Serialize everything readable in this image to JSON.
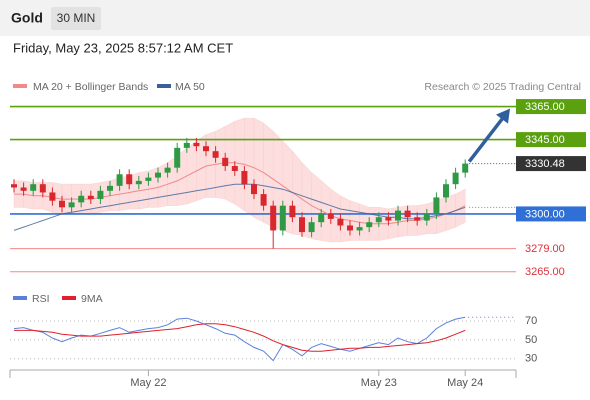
{
  "header": {
    "title": "Gold",
    "interval": "30 MIN",
    "timestamp": "Friday, May 23, 2025 8:57:12 AM CET"
  },
  "chart_data": [
    {
      "type": "candlestick",
      "credit": "Research © 2025 Trading Central",
      "categories": [
        null,
        null,
        null,
        null,
        null,
        null,
        null,
        null,
        null,
        null,
        null,
        null,
        null,
        null,
        "May 22",
        null,
        null,
        null,
        null,
        null,
        null,
        null,
        null,
        null,
        null,
        null,
        null,
        null,
        null,
        null,
        null,
        null,
        null,
        null,
        null,
        null,
        null,
        null,
        "May 23",
        null,
        null,
        null,
        null,
        null,
        null,
        null,
        null,
        "May 24"
      ],
      "open": [
        3318,
        3316,
        3314,
        3318,
        3313,
        3308,
        3304,
        3307,
        3311,
        3309,
        3314,
        3317,
        3324,
        3318,
        3320,
        3322,
        3325,
        3328,
        3340,
        3343,
        3341,
        3338,
        3334,
        3329,
        3326,
        3318,
        3312,
        3305,
        3290,
        3305,
        3298,
        3289,
        3295,
        3300,
        3297,
        3293,
        3290,
        3292,
        3295,
        3298,
        3296,
        3302,
        3298,
        3296,
        3300,
        3310,
        3318,
        3325
      ],
      "high": [
        3321,
        3319,
        3321,
        3321,
        3316,
        3311,
        3310,
        3314,
        3314,
        3317,
        3320,
        3327,
        3327,
        3323,
        3325,
        3328,
        3331,
        3343,
        3346,
        3346,
        3344,
        3341,
        3337,
        3332,
        3329,
        3321,
        3315,
        3308,
        3308,
        3308,
        3301,
        3298,
        3303,
        3303,
        3300,
        3296,
        3295,
        3298,
        3301,
        3301,
        3305,
        3305,
        3301,
        3303,
        3313,
        3321,
        3328,
        3333
      ],
      "low": [
        3313,
        3311,
        3311,
        3310,
        3305,
        3301,
        3301,
        3304,
        3306,
        3306,
        3311,
        3314,
        3315,
        3315,
        3317,
        3319,
        3322,
        3325,
        3337,
        3338,
        3335,
        3331,
        3326,
        3323,
        3315,
        3309,
        3302,
        3279,
        3287,
        3295,
        3286,
        3286,
        3292,
        3294,
        3290,
        3287,
        3287,
        3289,
        3292,
        3293,
        3293,
        3295,
        3293,
        3293,
        3297,
        3307,
        3315,
        3322
      ],
      "close": [
        3316,
        3314,
        3318,
        3313,
        3308,
        3304,
        3307,
        3311,
        3309,
        3314,
        3317,
        3324,
        3318,
        3320,
        3322,
        3325,
        3328,
        3340,
        3343,
        3341,
        3338,
        3334,
        3329,
        3326,
        3318,
        3312,
        3305,
        3290,
        3305,
        3298,
        3289,
        3295,
        3300,
        3297,
        3293,
        3290,
        3292,
        3295,
        3298,
        3296,
        3302,
        3298,
        3296,
        3300,
        3310,
        3318,
        3325,
        3330.48
      ],
      "up_color": "#2e9a45",
      "down_color": "#d9272e",
      "series": [
        {
          "name": "MA 20 + Bollinger Bands",
          "color": "#f08a8a",
          "band_color": "#fbd3d3",
          "values": [
            3312,
            3312,
            3311,
            3311,
            3310,
            3309,
            3309,
            3309,
            3309,
            3310,
            3311,
            3312,
            3313,
            3314,
            3315,
            3316,
            3318,
            3320,
            3323,
            3326,
            3329,
            3330,
            3331,
            3331,
            3330,
            3328,
            3325,
            3321,
            3317,
            3313,
            3309,
            3305,
            3302,
            3299,
            3297,
            3296,
            3295,
            3294,
            3294,
            3294,
            3295,
            3296,
            3296,
            3297,
            3298,
            3300,
            3302,
            3305
          ],
          "upper": [
            3320,
            3320,
            3319,
            3319,
            3319,
            3318,
            3318,
            3318,
            3318,
            3319,
            3320,
            3322,
            3323,
            3325,
            3326,
            3328,
            3331,
            3335,
            3340,
            3344,
            3348,
            3350,
            3353,
            3356,
            3358,
            3358,
            3355,
            3350,
            3344,
            3338,
            3331,
            3325,
            3320,
            3315,
            3311,
            3308,
            3306,
            3304,
            3304,
            3303,
            3304,
            3305,
            3305,
            3306,
            3308,
            3310,
            3312,
            3315
          ],
          "lower": [
            3304,
            3304,
            3303,
            3303,
            3301,
            3300,
            3300,
            3300,
            3300,
            3301,
            3302,
            3302,
            3303,
            3303,
            3304,
            3304,
            3305,
            3305,
            3306,
            3308,
            3310,
            3310,
            3309,
            3306,
            3302,
            3298,
            3295,
            3292,
            3290,
            3288,
            3287,
            3285,
            3284,
            3283,
            3283,
            3284,
            3284,
            3284,
            3284,
            3285,
            3286,
            3287,
            3287,
            3288,
            3288,
            3290,
            3292,
            3295
          ]
        },
        {
          "name": "MA 50",
          "color": "#3a5f9a",
          "values": [
            3290,
            3292,
            3294,
            3296,
            3298,
            3300,
            3301,
            3302,
            3303,
            3304,
            3305,
            3306,
            3307,
            3308,
            3309,
            3310,
            3311,
            3312,
            3313,
            3314,
            3315,
            3316,
            3317,
            3318,
            3318,
            3318,
            3317,
            3316,
            3315,
            3313,
            3311,
            3309,
            3307,
            3305,
            3303,
            3302,
            3301,
            3300,
            3299,
            3298,
            3298,
            3297,
            3297,
            3298,
            3299,
            3300,
            3302,
            3304
          ]
        }
      ],
      "levels": [
        {
          "value": 3365,
          "label": "3365.00",
          "color": "#5aa00f"
        },
        {
          "value": 3345,
          "label": "3345.00",
          "color": "#5aa00f"
        },
        {
          "value": 3300,
          "label": "3300.00",
          "color": "#2f6fd6"
        },
        {
          "value": 3279,
          "label": "3279.00",
          "color": "#f08a8a"
        },
        {
          "value": 3265,
          "label": "3265.00",
          "color": "#f08a8a"
        }
      ],
      "ylim": [
        3260,
        3372
      ]
    },
    {
      "type": "line",
      "series": [
        {
          "name": "RSI",
          "color": "#5b80dc",
          "values": [
            62,
            63,
            60,
            58,
            52,
            48,
            52,
            55,
            54,
            57,
            60,
            63,
            58,
            60,
            62,
            63,
            66,
            72,
            73,
            70,
            66,
            62,
            57,
            55,
            48,
            42,
            38,
            28,
            45,
            40,
            33,
            42,
            46,
            43,
            40,
            38,
            41,
            44,
            47,
            45,
            52,
            48,
            46,
            52,
            62,
            68,
            72,
            74
          ]
        },
        {
          "name": "9MA",
          "color": "#e0202a",
          "values": [
            60,
            60,
            60,
            59,
            58,
            56,
            55,
            54,
            54,
            54,
            55,
            56,
            57,
            58,
            59,
            60,
            61,
            62,
            64,
            66,
            67,
            67,
            66,
            64,
            61,
            58,
            54,
            49,
            45,
            42,
            39,
            38,
            38,
            39,
            40,
            41,
            41,
            42,
            42,
            43,
            44,
            45,
            46,
            47,
            49,
            52,
            56,
            60
          ]
        }
      ],
      "ylim": [
        18,
        87
      ],
      "yticks": [
        30,
        50,
        70
      ]
    }
  ]
}
